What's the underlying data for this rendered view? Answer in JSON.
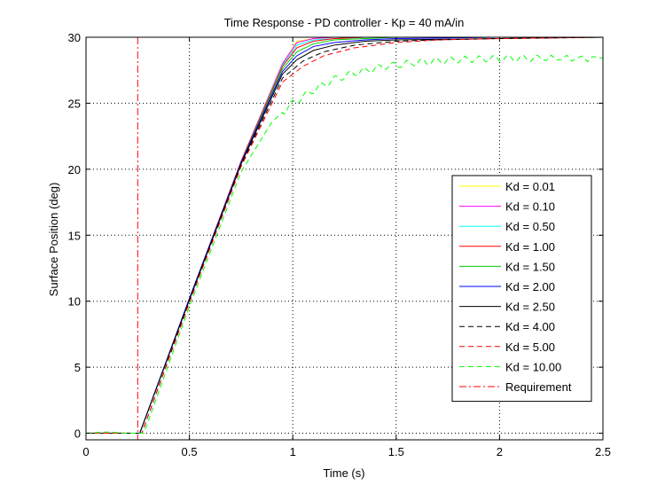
{
  "chart_data": {
    "type": "line",
    "title": "Time Response - PD controller - Kp = 40 mA/in",
    "xlabel": "Time (s)",
    "ylabel": "Surface Position (deg)",
    "xlim": [
      0,
      2.5
    ],
    "ylim": [
      -0.5,
      30
    ],
    "xticks": [
      0,
      0.5,
      1,
      1.5,
      2,
      2.5
    ],
    "xtick_labels": [
      "0",
      "0.5",
      "1",
      "1.5",
      "2",
      "2.5"
    ],
    "yticks": [
      0,
      5,
      10,
      15,
      20,
      25,
      30
    ],
    "ytick_labels": [
      "0",
      "5",
      "10",
      "15",
      "20",
      "25",
      "30"
    ],
    "grid": true,
    "legend_position": "lower-right",
    "requirement": {
      "name": "Requirement",
      "x": 0.25,
      "color": "#ff0000"
    },
    "series": [
      {
        "name": "Kd = 0.01",
        "color": "#ffff00",
        "dash": "solid",
        "x": [
          0,
          0.26,
          0.5,
          0.75,
          0.95,
          1.02,
          1.1,
          1.2,
          1.35,
          1.5,
          2.0,
          2.5
        ],
        "y": [
          0,
          0,
          10.2,
          20.6,
          28.0,
          29.7,
          29.9,
          30.0,
          30.0,
          30.0,
          30.0,
          30.0
        ]
      },
      {
        "name": "Kd = 0.10",
        "color": "#ff00ff",
        "dash": "solid",
        "x": [
          0,
          0.26,
          0.5,
          0.75,
          0.95,
          1.02,
          1.1,
          1.2,
          1.35,
          1.5,
          2.0,
          2.5
        ],
        "y": [
          0,
          0,
          10.2,
          20.6,
          28.0,
          29.6,
          29.9,
          30.0,
          30.0,
          30.0,
          30.0,
          30.0
        ]
      },
      {
        "name": "Kd = 0.50",
        "color": "#00ffff",
        "dash": "solid",
        "x": [
          0,
          0.26,
          0.5,
          0.75,
          0.95,
          1.02,
          1.1,
          1.2,
          1.35,
          1.5,
          2.0,
          2.5
        ],
        "y": [
          0,
          0,
          10.2,
          20.6,
          27.9,
          29.4,
          29.8,
          29.9,
          30.0,
          30.0,
          30.0,
          30.0
        ]
      },
      {
        "name": "Kd = 1.00",
        "color": "#ff0000",
        "dash": "solid",
        "x": [
          0,
          0.26,
          0.5,
          0.75,
          0.95,
          1.02,
          1.1,
          1.2,
          1.35,
          1.5,
          2.0,
          2.5
        ],
        "y": [
          0,
          0,
          10.2,
          20.6,
          27.8,
          29.2,
          29.7,
          29.9,
          30.0,
          30.0,
          30.0,
          30.0
        ]
      },
      {
        "name": "Kd = 1.50",
        "color": "#00cc00",
        "dash": "solid",
        "x": [
          0,
          0.26,
          0.5,
          0.75,
          0.95,
          1.02,
          1.1,
          1.2,
          1.35,
          1.5,
          2.0,
          2.5
        ],
        "y": [
          0,
          0,
          10.2,
          20.5,
          27.6,
          28.9,
          29.5,
          29.8,
          29.9,
          30.0,
          30.0,
          30.0
        ]
      },
      {
        "name": "Kd = 2.00",
        "color": "#0000ff",
        "dash": "solid",
        "x": [
          0,
          0.26,
          0.5,
          0.75,
          0.95,
          1.02,
          1.1,
          1.2,
          1.35,
          1.5,
          2.0,
          2.5
        ],
        "y": [
          0,
          0,
          10.2,
          20.5,
          27.4,
          28.6,
          29.3,
          29.6,
          29.8,
          29.9,
          30.0,
          30.0
        ]
      },
      {
        "name": "Kd = 2.50",
        "color": "#000000",
        "dash": "solid",
        "x": [
          0,
          0.26,
          0.5,
          0.75,
          0.95,
          1.02,
          1.1,
          1.2,
          1.35,
          1.5,
          2.0,
          2.5
        ],
        "y": [
          0,
          0,
          10.1,
          20.4,
          27.2,
          28.3,
          29.0,
          29.4,
          29.7,
          29.8,
          29.9,
          30.0
        ]
      },
      {
        "name": "Kd = 4.00",
        "color": "#000000",
        "dash": "dashed",
        "x": [
          0,
          0.27,
          0.5,
          0.75,
          0.95,
          1.05,
          1.15,
          1.3,
          1.5,
          1.7,
          2.0,
          2.5
        ],
        "y": [
          0,
          0,
          10.0,
          20.3,
          26.9,
          28.2,
          28.9,
          29.4,
          29.7,
          29.8,
          29.9,
          30.0
        ]
      },
      {
        "name": "Kd = 5.00",
        "color": "#ff0000",
        "dash": "dashed",
        "x": [
          0,
          0.27,
          0.5,
          0.75,
          0.95,
          1.05,
          1.15,
          1.3,
          1.5,
          1.7,
          2.0,
          2.5
        ],
        "y": [
          0,
          0,
          9.9,
          20.2,
          26.6,
          27.8,
          28.6,
          29.2,
          29.6,
          29.8,
          29.9,
          30.0
        ]
      },
      {
        "name": "Kd = 10.00",
        "color": "#00ff00",
        "dash": "dashed",
        "x": [
          0,
          0.1,
          0.2,
          0.28,
          0.5,
          0.75,
          0.9,
          1.0,
          1.1,
          1.2,
          1.3,
          1.45,
          1.6,
          1.8,
          2.0,
          2.2,
          2.5
        ],
        "y": [
          0,
          0.1,
          0.0,
          0,
          9.6,
          19.8,
          23.6,
          25.0,
          26.0,
          26.8,
          27.3,
          27.8,
          28.1,
          28.3,
          28.4,
          28.4,
          28.4
        ],
        "ripple": 0.25
      }
    ]
  }
}
